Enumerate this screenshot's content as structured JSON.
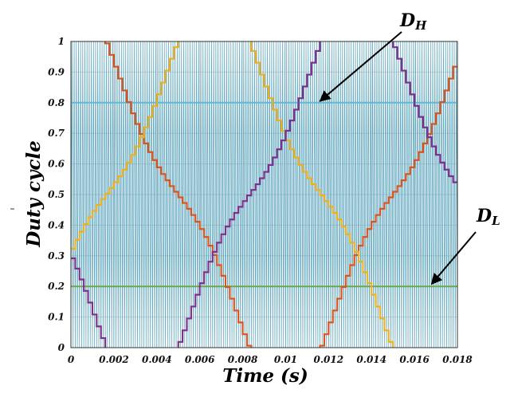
{
  "chart_data": {
    "type": "line",
    "title": "",
    "xlabel": "Time (s)",
    "ylabel": "Duty cycle",
    "xlim": [
      0,
      0.018
    ],
    "ylim": [
      0,
      1
    ],
    "grid": true,
    "x_ticks": [
      "0",
      "0.002",
      "0.004",
      "0.006",
      "0.008",
      "0.01",
      "0.012",
      "0.014",
      "0.016",
      "0.018"
    ],
    "y_ticks": [
      "0",
      "0.1",
      "0.2",
      "0.3",
      "0.4",
      "0.5",
      "0.6",
      "0.7",
      "0.8",
      "0.9",
      "1"
    ],
    "carrier": {
      "description_color": "#4a9bb5",
      "frequency_hz": 10000,
      "min": 0,
      "max": 1
    },
    "thresholds": [
      {
        "label_base": "D",
        "label_sub": "H",
        "value": 0.8,
        "color": "#5fb8d6",
        "arrow_to_x": 0.0116
      },
      {
        "label_base": "D",
        "label_sub": "L",
        "value": 0.2,
        "color": "#6aa84f",
        "arrow_to_x": 0.0168
      }
    ],
    "series": [
      {
        "color": "#d9541e",
        "phase_deg": 90
      },
      {
        "color": "#edb120",
        "phase_deg": -30
      },
      {
        "color": "#7e2f8e",
        "phase_deg": 210
      }
    ],
    "series_model": {
      "fundamental_hz": 50,
      "offset": 0.5,
      "amplitude": 0.577,
      "third_harmonic": -0.0962,
      "step_s": 0.0002
    }
  }
}
